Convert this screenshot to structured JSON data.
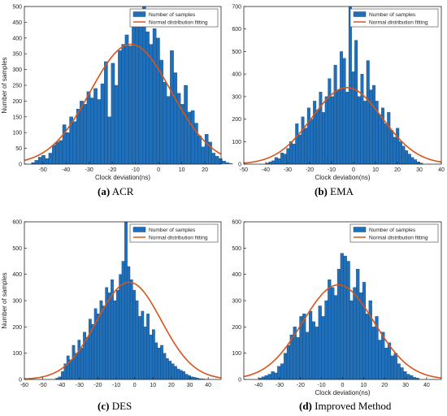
{
  "figure": {
    "legend": {
      "samples_label": "Number of samples",
      "fit_label": "Normal distribution fitting"
    },
    "colors": {
      "bar_fill": "#1f6fba",
      "bar_edge": "#0b3a63",
      "fit_line": "#d9541a",
      "axis": "#262626"
    }
  },
  "chart_data": [
    {
      "type": "bar",
      "panel_letter": "(a)",
      "caption": "ACR",
      "xlabel": "Clock deviation(ns)",
      "ylabel": "Number of samples",
      "xlim": [
        -58,
        27
      ],
      "ylim": [
        0,
        500
      ],
      "xticks": [
        -50,
        -40,
        -30,
        -20,
        -10,
        0,
        10,
        20
      ],
      "yticks": [
        0,
        50,
        100,
        150,
        200,
        250,
        300,
        350,
        400,
        450,
        500
      ],
      "bin_start": -55,
      "bin_width": 1.5,
      "values": [
        5,
        12,
        22,
        28,
        18,
        35,
        60,
        70,
        75,
        125,
        100,
        150,
        135,
        175,
        200,
        190,
        230,
        210,
        240,
        205,
        255,
        325,
        150,
        320,
        250,
        360,
        380,
        410,
        375,
        445,
        490,
        470,
        500,
        420,
        380,
        430,
        400,
        330,
        260,
        215,
        360,
        290,
        225,
        190,
        250,
        165,
        170,
        130,
        90,
        55,
        95,
        70,
        35,
        25,
        18,
        10,
        5,
        2
      ],
      "fit": {
        "mean": -12,
        "sd": 17.5,
        "peak": 380
      },
      "legend": [
        "Number of samples",
        "Normal distribution fitting"
      ],
      "grid": false,
      "legend_position": "top-right"
    },
    {
      "type": "bar",
      "panel_letter": "(b)",
      "caption": "EMA",
      "xlabel": "Clock deviation(ns)",
      "ylabel": "",
      "xlim": [
        -50,
        40
      ],
      "ylim": [
        0,
        700
      ],
      "xticks": [
        -50,
        -40,
        -30,
        -20,
        -10,
        0,
        10,
        20,
        30,
        40
      ],
      "yticks": [
        0,
        100,
        200,
        300,
        400,
        500,
        600,
        700
      ],
      "bin_start": -40,
      "bin_width": 1.35,
      "values": [
        5,
        10,
        15,
        30,
        25,
        50,
        45,
        70,
        100,
        90,
        180,
        130,
        210,
        160,
        250,
        200,
        280,
        240,
        320,
        230,
        300,
        380,
        300,
        440,
        330,
        500,
        470,
        320,
        700,
        410,
        550,
        300,
        400,
        280,
        460,
        330,
        350,
        280,
        220,
        250,
        180,
        230,
        150,
        120,
        160,
        100,
        80,
        60,
        45,
        30,
        20,
        10,
        5
      ],
      "fit": {
        "mean": -3,
        "sd": 16,
        "peak": 340
      },
      "legend": [
        "Number of samples",
        "Normal distribution fitting"
      ],
      "grid": false,
      "legend_position": "top-right"
    },
    {
      "type": "bar",
      "panel_letter": "(c)",
      "caption": "DES",
      "xlabel": "",
      "ylabel": "Number of samples",
      "xlim": [
        -60,
        47
      ],
      "ylim": [
        0,
        600
      ],
      "xticks": [
        -60,
        -50,
        -40,
        -30,
        -20,
        -10,
        0,
        10,
        20,
        30,
        40
      ],
      "yticks": [
        0,
        100,
        200,
        300,
        400,
        500,
        600
      ],
      "bin_start": -43,
      "bin_width": 1.5,
      "values": [
        5,
        10,
        30,
        60,
        90,
        75,
        130,
        100,
        150,
        120,
        180,
        160,
        230,
        210,
        270,
        250,
        300,
        280,
        350,
        330,
        380,
        300,
        340,
        400,
        450,
        600,
        430,
        380,
        340,
        300,
        240,
        260,
        200,
        250,
        170,
        190,
        140,
        120,
        130,
        100,
        80,
        70,
        60,
        50,
        40,
        35,
        30,
        20,
        15,
        10,
        8,
        5,
        3,
        2,
        1
      ],
      "fit": {
        "mean": -3,
        "sd": 17.5,
        "peak": 370
      },
      "legend": [
        "Number of samples",
        "Normal distribution fitting"
      ],
      "grid": false,
      "legend_position": "top-right"
    },
    {
      "type": "bar",
      "panel_letter": "(d)",
      "caption": "Improved Method",
      "xlabel": "Clock deviation(ns)",
      "ylabel": "",
      "xlim": [
        -47,
        47
      ],
      "ylim": [
        0,
        600
      ],
      "xticks": [
        -40,
        -30,
        -20,
        -10,
        0,
        10,
        20,
        30,
        40
      ],
      "yticks": [
        0,
        100,
        200,
        300,
        400,
        500,
        600
      ],
      "bin_start": -40,
      "bin_width": 1.5,
      "values": [
        5,
        10,
        15,
        20,
        30,
        25,
        50,
        60,
        100,
        130,
        170,
        200,
        160,
        240,
        250,
        180,
        260,
        220,
        200,
        280,
        240,
        300,
        380,
        350,
        320,
        420,
        480,
        470,
        450,
        300,
        350,
        420,
        330,
        370,
        250,
        300,
        200,
        240,
        150,
        180,
        120,
        140,
        90,
        100,
        60,
        45,
        30,
        20,
        15,
        8,
        5
      ],
      "fit": {
        "mean": -2,
        "sd": 17,
        "peak": 360
      },
      "legend": [
        "Number of samples",
        "Normal distribution fitting"
      ],
      "grid": false,
      "legend_position": "top-right"
    }
  ]
}
